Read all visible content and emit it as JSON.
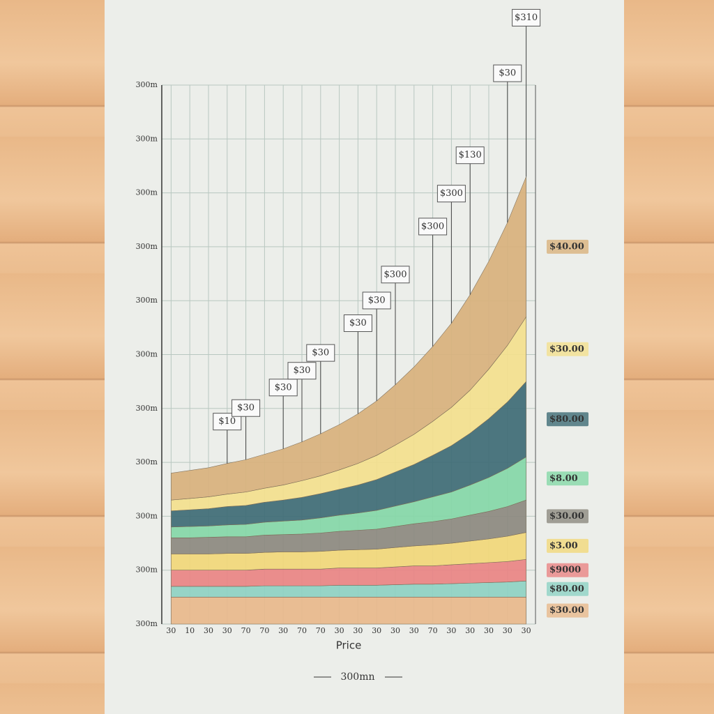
{
  "chart_data": {
    "type": "stacked_area",
    "x_label": "Price",
    "caption": "300mn",
    "categories": [
      "30",
      "10",
      "30",
      "30",
      "70",
      "70",
      "30",
      "70",
      "70",
      "30",
      "30",
      "30",
      "30",
      "30",
      "70",
      "30",
      "30",
      "30",
      "30",
      "30"
    ],
    "ylim": [
      0,
      100
    ],
    "yticks": [
      {
        "value": 0,
        "label": "300m"
      },
      {
        "value": 10,
        "label": "300m"
      },
      {
        "value": 20,
        "label": "300m"
      },
      {
        "value": 30,
        "label": "300m"
      },
      {
        "value": 40,
        "label": "300m"
      },
      {
        "value": 50,
        "label": "300m"
      },
      {
        "value": 60,
        "label": "300m"
      },
      {
        "value": 70,
        "label": "300m"
      },
      {
        "value": 80,
        "label": "300m"
      },
      {
        "value": 90,
        "label": "300m"
      },
      {
        "value": 100,
        "label": "300m"
      }
    ],
    "grid": true,
    "series": [
      {
        "name": "$30.00",
        "color": "#e9b98c",
        "values": [
          5,
          5,
          5,
          5,
          5,
          5,
          5,
          5,
          5,
          5,
          5,
          5,
          5,
          5,
          5,
          5,
          5,
          5,
          5,
          5
        ]
      },
      {
        "name": "$80.00",
        "color": "#8fd2c4",
        "values": [
          2,
          2,
          2,
          2,
          2,
          2.1,
          2.1,
          2.1,
          2.1,
          2.2,
          2.2,
          2.2,
          2.3,
          2.4,
          2.4,
          2.5,
          2.6,
          2.7,
          2.8,
          3
        ]
      },
      {
        "name": "$9000",
        "color": "#ea8585",
        "values": [
          3,
          3,
          3,
          3,
          3,
          3.1,
          3.1,
          3.1,
          3.1,
          3.2,
          3.2,
          3.2,
          3.3,
          3.4,
          3.4,
          3.5,
          3.6,
          3.7,
          3.8,
          4
        ]
      },
      {
        "name": "$3.00",
        "color": "#f2d87a",
        "values": [
          3,
          3,
          3,
          3.1,
          3.1,
          3.1,
          3.2,
          3.2,
          3.3,
          3.3,
          3.4,
          3.5,
          3.6,
          3.7,
          3.9,
          4,
          4.2,
          4.4,
          4.7,
          5
        ]
      },
      {
        "name": "$30.00",
        "color": "#8d8a80",
        "values": [
          3,
          3,
          3.1,
          3.1,
          3.1,
          3.2,
          3.2,
          3.3,
          3.4,
          3.5,
          3.6,
          3.7,
          3.9,
          4.1,
          4.3,
          4.5,
          4.8,
          5.1,
          5.5,
          6
        ]
      },
      {
        "name": "$8.00",
        "color": "#86d8a8",
        "values": [
          2,
          2.1,
          2.1,
          2.2,
          2.3,
          2.4,
          2.5,
          2.6,
          2.8,
          3,
          3.2,
          3.5,
          3.8,
          4.1,
          4.6,
          5,
          5.6,
          6.3,
          7.1,
          8
        ]
      },
      {
        "name": "$80.00",
        "color": "#3f6c76",
        "values": [
          3,
          3.1,
          3.2,
          3.4,
          3.5,
          3.7,
          3.9,
          4.2,
          4.5,
          4.8,
          5.2,
          5.7,
          6.3,
          6.9,
          7.7,
          8.6,
          9.6,
          10.9,
          12.3,
          14
        ]
      },
      {
        "name": "$30.00",
        "color": "#f4e08e",
        "values": [
          2,
          2.1,
          2.2,
          2.3,
          2.5,
          2.6,
          2.8,
          3.1,
          3.3,
          3.6,
          4,
          4.5,
          5,
          5.6,
          6.3,
          7.1,
          8,
          9.2,
          10.5,
          12
        ]
      },
      {
        "name": "$40.00",
        "color": "#d9b27d",
        "values": [
          5,
          5.2,
          5.4,
          5.7,
          6,
          6.3,
          6.7,
          7.2,
          7.8,
          8.4,
          9.2,
          10.1,
          11.2,
          12.5,
          13.9,
          15.6,
          17.7,
          20,
          22.8,
          26
        ]
      }
    ],
    "annotations": [
      "$10",
      "$30",
      "$30",
      "$30",
      "$30",
      "$30",
      "$30",
      "$300",
      "$300",
      "$300",
      "$130",
      "$30",
      "$310"
    ]
  }
}
